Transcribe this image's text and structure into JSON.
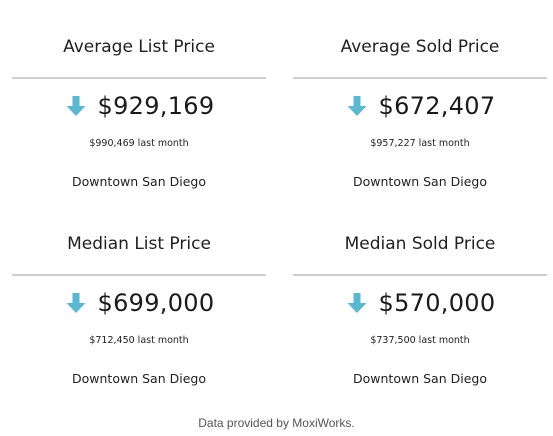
{
  "cards": [
    {
      "title": "Average List Price",
      "trend_icon": "arrow-down-icon",
      "value": "$929,169",
      "last_month": "$990,469 last month",
      "area": "Downtown San Diego"
    },
    {
      "title": "Average Sold Price",
      "trend_icon": "arrow-down-icon",
      "value": "$672,407",
      "last_month": "$957,227 last month",
      "area": "Downtown San Diego"
    },
    {
      "title": "Median List Price",
      "trend_icon": "arrow-down-icon",
      "value": "$699,000",
      "last_month": "$712,450 last month",
      "area": "Downtown San Diego"
    },
    {
      "title": "Median Sold Price",
      "trend_icon": "arrow-down-icon",
      "value": "$570,000",
      "last_month": "$737,500 last month",
      "area": "Downtown San Diego"
    }
  ],
  "footer": {
    "text": "Data provided by MoxiWorks."
  },
  "colors": {
    "arrow": "#5ab8d0",
    "rule": "#cfcfcf",
    "text": "#1a1a1a",
    "footer_text": "#555555"
  }
}
